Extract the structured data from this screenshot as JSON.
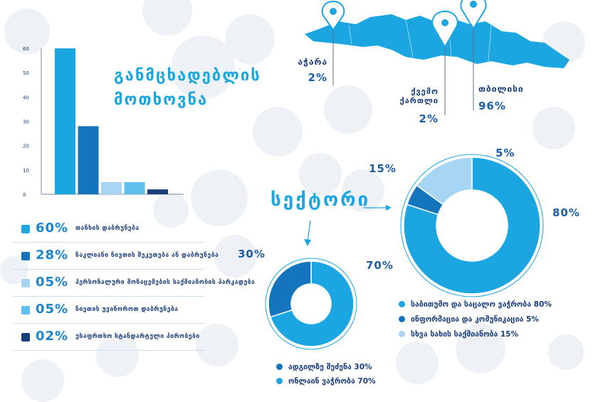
{
  "colors": {
    "c60": "#1ba6e2",
    "c28": "#1475bd",
    "c05a": "#a6d6f3",
    "c05b": "#5ec0ec",
    "c02": "#163e7a",
    "title": "#1ba6e2",
    "text": "#1b5fa6",
    "map": "#1ba6e2"
  },
  "titles": {
    "requests": "განმცხადებლის მოთხოვნა",
    "sector": "სექტორი"
  },
  "map_labels": {
    "adjara": {
      "name": "აჭარა",
      "pct": "2%"
    },
    "kvemo_kartli": {
      "name": "ქვემო ქართლი",
      "pct": "2%"
    },
    "tbilisi": {
      "name": "თბილისი",
      "pct": "96%"
    }
  },
  "request_legend": [
    {
      "pct": "60%",
      "label": "თანხის დაბრუნება",
      "color": "#1ba6e2"
    },
    {
      "pct": "28%",
      "label": "ნაკლიანი ნივთის შეკეთება ან დაბრუნება",
      "color": "#1475bd"
    },
    {
      "pct": "05%",
      "label": "პერსონალური მონაცემების საქმიანობის პარკადება",
      "color": "#a6d6f3"
    },
    {
      "pct": "05%",
      "label": "ნივთის უვინოროთ დაბრუნება",
      "color": "#5ec0ec"
    },
    {
      "pct": "02%",
      "label": "უსაფრთხო სტანდარტული პირობები",
      "color": "#163e7a"
    }
  ],
  "chart_data": [
    {
      "type": "bar",
      "title": "განმცხადებლის მოთხოვნა",
      "categories": [
        "თანხის დაბრუნება",
        "ნაკლიანი ნივთის შეკეთება ან დაბრუნება",
        "პერსონალური მონაცემების საქმიანობის პარკადება",
        "ნივთის უვინოროთ დაბრუნება",
        "უსაფრთხო სტანდარტული პირობები"
      ],
      "values": [
        60,
        28,
        5,
        5,
        2
      ],
      "colors": [
        "#1ba6e2",
        "#1475bd",
        "#a6d6f3",
        "#5ec0ec",
        "#163e7a"
      ],
      "yticks": [
        "0",
        "10",
        "20",
        "30",
        "40",
        "50",
        "60"
      ],
      "ylim": [
        0,
        60
      ],
      "grid": false
    },
    {
      "type": "pie",
      "variant": "donut",
      "slices": [
        {
          "label": "საბითუმო და საცალო ვაჭრობა",
          "value": 80,
          "display": "80%",
          "color": "#1ba6e2"
        },
        {
          "label": "ინფორმაცია და კომუნიკაცია",
          "value": 5,
          "display": "5%",
          "color": "#1475bd"
        },
        {
          "label": "სხვა სახის საქმიანობა",
          "value": 15,
          "display": "15%",
          "color": "#a6d6f3"
        }
      ],
      "legend": [
        "საბითუმო და საცალო ვაჭრობა 80%",
        "ინფორმაცია და კომუნიკაცია 5%",
        "სხვა სახის საქმიანობა 15%"
      ]
    },
    {
      "type": "pie",
      "variant": "donut",
      "slices": [
        {
          "label": "ონლაინ ვაჭრობა",
          "value": 70,
          "display": "70%",
          "color": "#1ba6e2"
        },
        {
          "label": "ადგილზე შეძენა",
          "value": 30,
          "display": "30%",
          "color": "#1475bd"
        }
      ],
      "legend": [
        "ადგილზე შეძენა 30%",
        "ონლაინ ვაჭრობა 70%"
      ]
    }
  ]
}
